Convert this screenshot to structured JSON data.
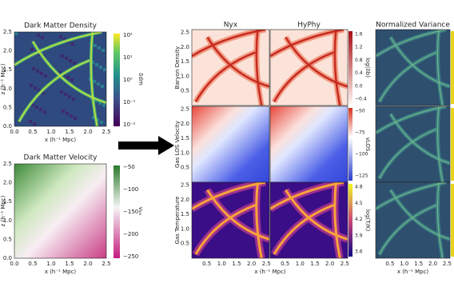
{
  "left_panels": [
    {
      "title": "Dark Matter Density",
      "xlabel": "x (h⁻¹ Mpc)",
      "ylabel": "z (h⁻¹ Mpc)",
      "xticks": [
        "0.0",
        "0.5",
        "1.0",
        "1.5",
        "2.0",
        "2.5"
      ],
      "yticks": [
        "0.0",
        "0.5",
        "1.0",
        "1.5",
        "2.0",
        "2.5"
      ],
      "colorbar": {
        "label": "δdm",
        "ticks": [
          "10²",
          "10¹",
          "10⁰",
          "10⁻¹",
          "10⁻²"
        ]
      }
    },
    {
      "title": "Dark Matter Velocity",
      "xlabel": "x (h⁻¹ Mpc)",
      "ylabel": "z (h⁻¹ Mpc)",
      "xticks": [
        "0.0",
        "0.5",
        "1.0",
        "1.5",
        "2.0",
        "2.5"
      ],
      "yticks": [
        "0.0",
        "0.5",
        "1.0",
        "1.5",
        "2.0",
        "2.5"
      ],
      "colorbar": {
        "label": "vₗₒₛ",
        "ticks": [
          "−50",
          "−100",
          "−150",
          "−200",
          "−250"
        ]
      }
    }
  ],
  "grid": {
    "columns": [
      "Nyx",
      "HyPhy"
    ],
    "xlabel": "x (h⁻¹ Mpc)",
    "xticks": [
      "0.5",
      "1.0",
      "1.5",
      "2.0",
      "2.5"
    ],
    "yticks": [
      "0.5",
      "1.0",
      "1.5",
      "2.0",
      "2.5"
    ],
    "rows": [
      {
        "label": "Baryon Density",
        "colorbar_label": "log(δb)",
        "colorbar_ticks": [
          "1.6",
          "1.2",
          "0.8",
          "0.4",
          "0.0",
          "−0.4"
        ]
      },
      {
        "label": "Gas LOS Velocity",
        "colorbar_label": "vLOS",
        "colorbar_ticks": [
          "−50",
          "−75",
          "−100",
          "−125"
        ]
      },
      {
        "label": "Gas Temperature",
        "colorbar_label": "log(T/K)",
        "colorbar_ticks": [
          "4.8",
          "4.5",
          "4.2",
          "3.9",
          "3.6"
        ]
      }
    ]
  },
  "variance": {
    "title": "Normalized Variance",
    "xlabel": "x (h⁻¹ Mpc)",
    "xticks": [
      "0.5",
      "1.0",
      "1.5",
      "2.0",
      "2.5"
    ]
  }
}
